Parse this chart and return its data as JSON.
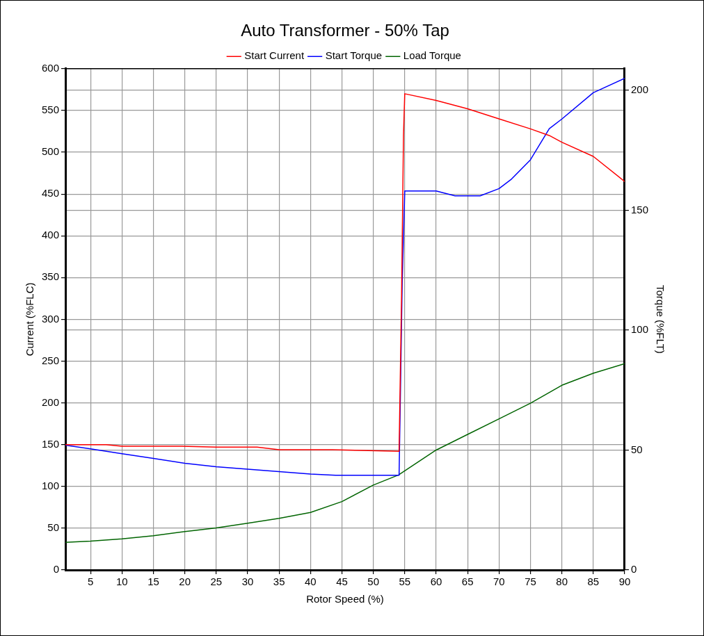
{
  "chart_data": {
    "type": "line",
    "title": "Auto Transformer - 50% Tap",
    "xlabel": "Rotor Speed (%)",
    "ylabel": "Current (%FLC)",
    "y2label": "Torque (%FLT)",
    "xlim": [
      1,
      90
    ],
    "xticks": [
      5,
      10,
      15,
      20,
      25,
      30,
      35,
      40,
      45,
      50,
      55,
      60,
      65,
      70,
      75,
      80,
      85,
      90
    ],
    "ylim": [
      0,
      600
    ],
    "yticks": [
      0,
      50,
      100,
      150,
      200,
      250,
      300,
      350,
      400,
      450,
      500,
      550,
      600
    ],
    "y2lim": [
      0,
      209
    ],
    "y2ticks": [
      0,
      50,
      100,
      150,
      200
    ],
    "grid": true,
    "legend": "top",
    "marker": "none",
    "line_style": "solid",
    "series": [
      {
        "name": "Start Current",
        "color": "#ff0000",
        "x": [
          1,
          7.5,
          10,
          19.5,
          25,
          31.5,
          35,
          43.5,
          54.1,
          54.5,
          54.8,
          55,
          60,
          65,
          70,
          75,
          78,
          80,
          85,
          90
        ],
        "values": [
          150,
          150,
          148,
          148,
          147,
          147,
          144,
          144,
          142,
          330,
          520,
          570,
          562,
          552,
          540,
          528,
          520,
          512,
          495,
          465
        ]
      },
      {
        "name": "Start Torque",
        "color": "#0000ff",
        "axis": "y2",
        "x": [
          1,
          5,
          10,
          15,
          20,
          25,
          30,
          35,
          40,
          44,
          54.1,
          54.6,
          55,
          60,
          63,
          67,
          70,
          72,
          75,
          78,
          80,
          85,
          90
        ],
        "values": [
          52,
          50.5,
          48.5,
          46.5,
          44.5,
          43,
          42,
          41,
          40,
          39.5,
          39.5,
          120,
          158,
          158,
          156,
          156,
          159,
          163,
          171,
          184,
          188,
          199,
          205
        ]
      },
      {
        "name": "Load Torque",
        "color": "#006400",
        "axis": "y2",
        "x": [
          1,
          5,
          10,
          15,
          20,
          25,
          30,
          35,
          40,
          45,
          50,
          54,
          60,
          65,
          70,
          75,
          80,
          85,
          90
        ],
        "values": [
          11.5,
          12,
          13,
          14.3,
          16,
          17.5,
          19.5,
          21.5,
          24,
          28.5,
          35.4,
          39.6,
          50,
          56.5,
          63,
          69.5,
          77,
          82,
          86
        ]
      }
    ]
  }
}
